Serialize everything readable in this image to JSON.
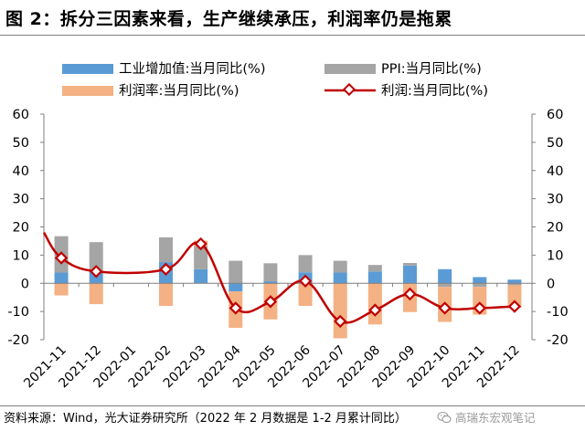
{
  "title": "图 2：拆分三因素来看，生产继续承压，利润率仍是拖累",
  "source": "资料来源：Wind，光大证券研究所（2022 年 2 月数据是 1-2 月累计同比）",
  "watermark": "高瑞东宏观笔记",
  "icons": {
    "watermark": "wechat-logo-icon"
  },
  "colors": {
    "industrial": "#5b9bd5",
    "ppi": "#a5a5a5",
    "margin": "#f4b183",
    "profit": "#c00000",
    "axis": "#7f7f7f"
  },
  "chart_data": {
    "type": "bar",
    "categories": [
      "2021-11",
      "2021-12",
      "2022-01",
      "2022-02",
      "2022-03",
      "2022-04",
      "2022-05",
      "2022-06",
      "2022-07",
      "2022-08",
      "2022-09",
      "2022-10",
      "2022-11",
      "2022-12"
    ],
    "series": [
      {
        "name": "工业增加值:当月同比(%)",
        "type": "bar",
        "values": [
          3.8,
          4.3,
          null,
          7.5,
          5.0,
          -2.9,
          0.7,
          3.9,
          3.8,
          4.2,
          6.3,
          5.0,
          2.2,
          1.3
        ]
      },
      {
        "name": "PPI:当月同比(%)",
        "type": "bar",
        "values": [
          12.9,
          10.3,
          null,
          8.8,
          8.3,
          8.0,
          6.4,
          6.1,
          4.2,
          2.3,
          0.9,
          -1.3,
          -1.3,
          -0.7
        ]
      },
      {
        "name": "利润率:当月同比(%)",
        "type": "bar",
        "values": [
          -4.3,
          -7.4,
          null,
          -8.0,
          1.8,
          -12.9,
          -12.8,
          -8.0,
          -19.5,
          -14.6,
          -10.2,
          -12.4,
          -9.8,
          -8.0
        ]
      },
      {
        "name": "利润:当月同比(%)",
        "type": "line",
        "values": [
          9.0,
          4.2,
          null,
          5.0,
          14.0,
          -8.8,
          -6.5,
          0.8,
          -13.5,
          -9.5,
          -3.8,
          -8.8,
          -8.8,
          -8.2
        ]
      }
    ],
    "line_start": 18.0,
    "ylim": [
      -20,
      60
    ],
    "yticks": [
      -20,
      -10,
      0,
      10,
      20,
      30,
      40,
      50,
      60
    ],
    "legend_position": "top",
    "grid": false
  }
}
